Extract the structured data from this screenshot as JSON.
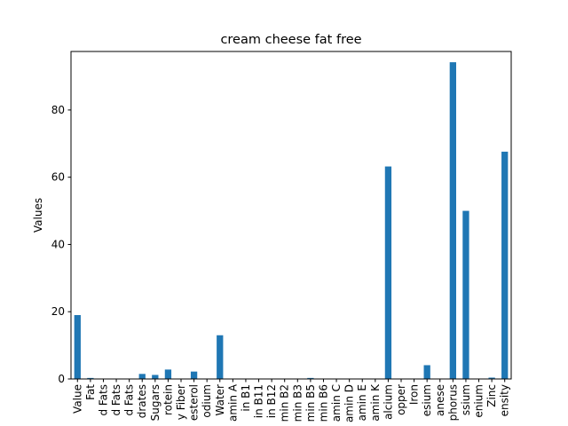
{
  "chart_data": {
    "type": "bar",
    "title": "cream cheese fat free",
    "xlabel": "",
    "ylabel": "Values",
    "ylim": [
      0,
      97.4
    ],
    "yticks": [
      0,
      20,
      40,
      60,
      80
    ],
    "bar_color": "#1f77b4",
    "grid": false,
    "categories": [
      "Value",
      "Fat",
      "d Fats",
      "d Fats",
      "d Fats",
      "drates",
      "Sugars",
      "rotein",
      "y Fiber",
      "esterol",
      "odium",
      "Water",
      "amin A",
      "in B1",
      "in B11",
      "in B12",
      "min B2",
      "min B3",
      "min B5",
      "min B6",
      "amin C",
      "amin D",
      "amin E",
      "amin K",
      "alcium",
      "opper",
      "Iron",
      "esium",
      "anese",
      "phorus",
      "ssium",
      "enium",
      "Zinc",
      "ensity"
    ],
    "values": [
      19,
      0.3,
      0,
      0,
      0,
      1.5,
      1.2,
      2.8,
      0,
      2.2,
      0,
      13,
      0,
      0,
      0,
      0,
      0,
      0,
      0.3,
      0,
      0,
      0,
      0,
      0,
      63.2,
      0,
      0,
      4.1,
      0,
      94.2,
      50,
      0,
      0.4,
      67.6
    ]
  }
}
